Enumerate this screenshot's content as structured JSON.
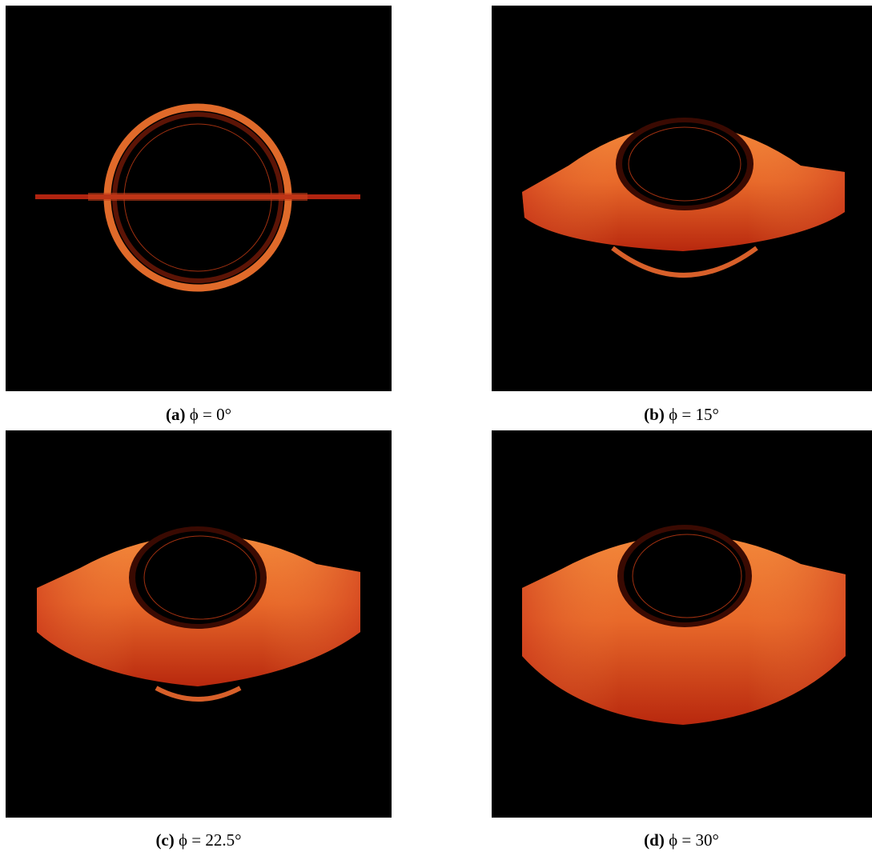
{
  "figure": {
    "panels": [
      {
        "label": "(a)",
        "caption": "ϕ = 0°"
      },
      {
        "label": "(b)",
        "caption": "ϕ = 15°"
      },
      {
        "label": "(c)",
        "caption": "ϕ = 22.5°"
      },
      {
        "label": "(d)",
        "caption": "ϕ = 30°"
      }
    ]
  }
}
